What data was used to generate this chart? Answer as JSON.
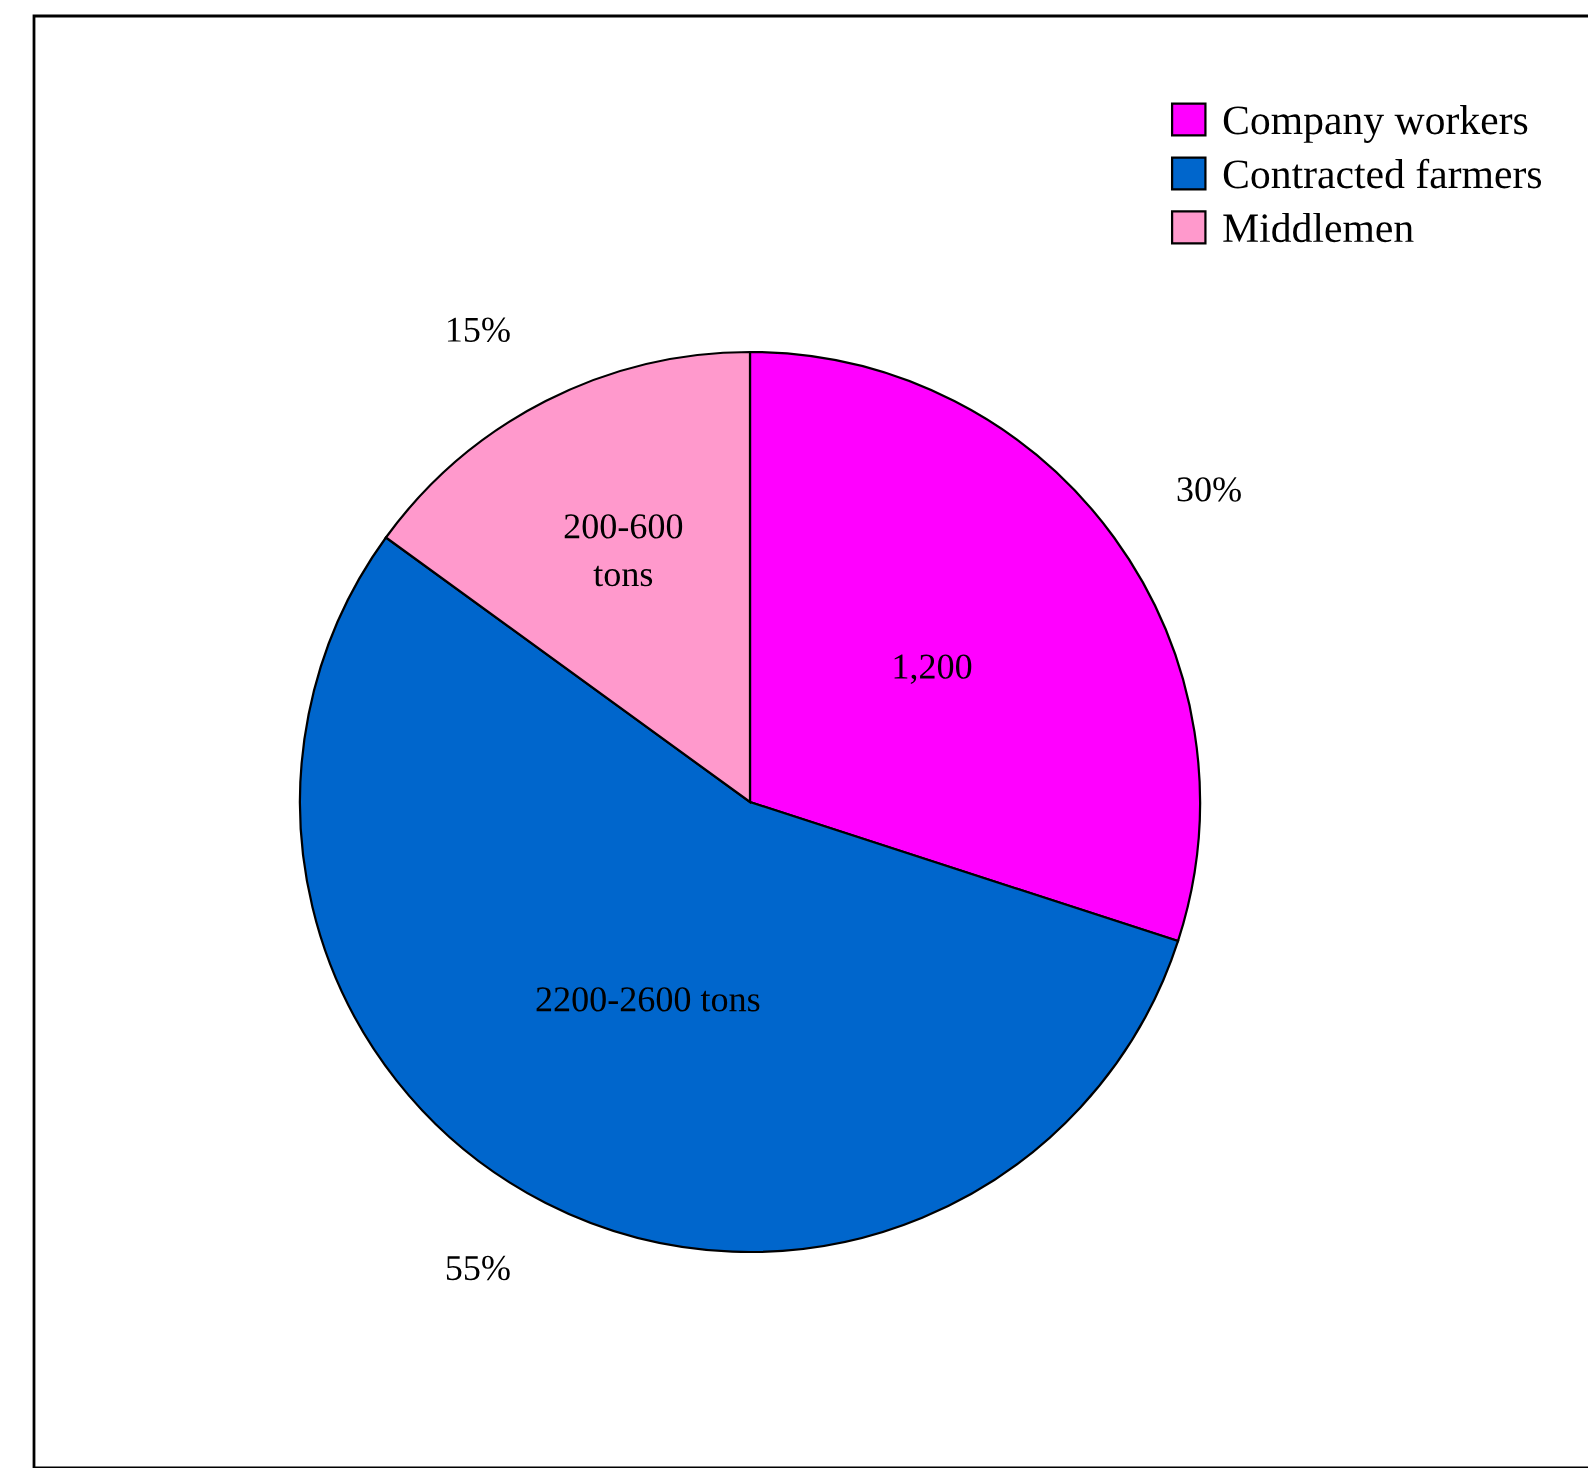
{
  "chart_data": {
    "type": "pie",
    "categories": [
      "Company workers",
      "Contracted farmers",
      "Middlemen"
    ],
    "values": [
      30,
      55,
      15
    ],
    "colors": [
      "#ff00ff",
      "#0066cc",
      "#ff99cc"
    ],
    "value_labels": [
      "30%",
      "55%",
      "15%"
    ],
    "annotations": [
      "1,200",
      "2200-2600 tons",
      "200-600\ntons"
    ],
    "legend": "top right"
  }
}
